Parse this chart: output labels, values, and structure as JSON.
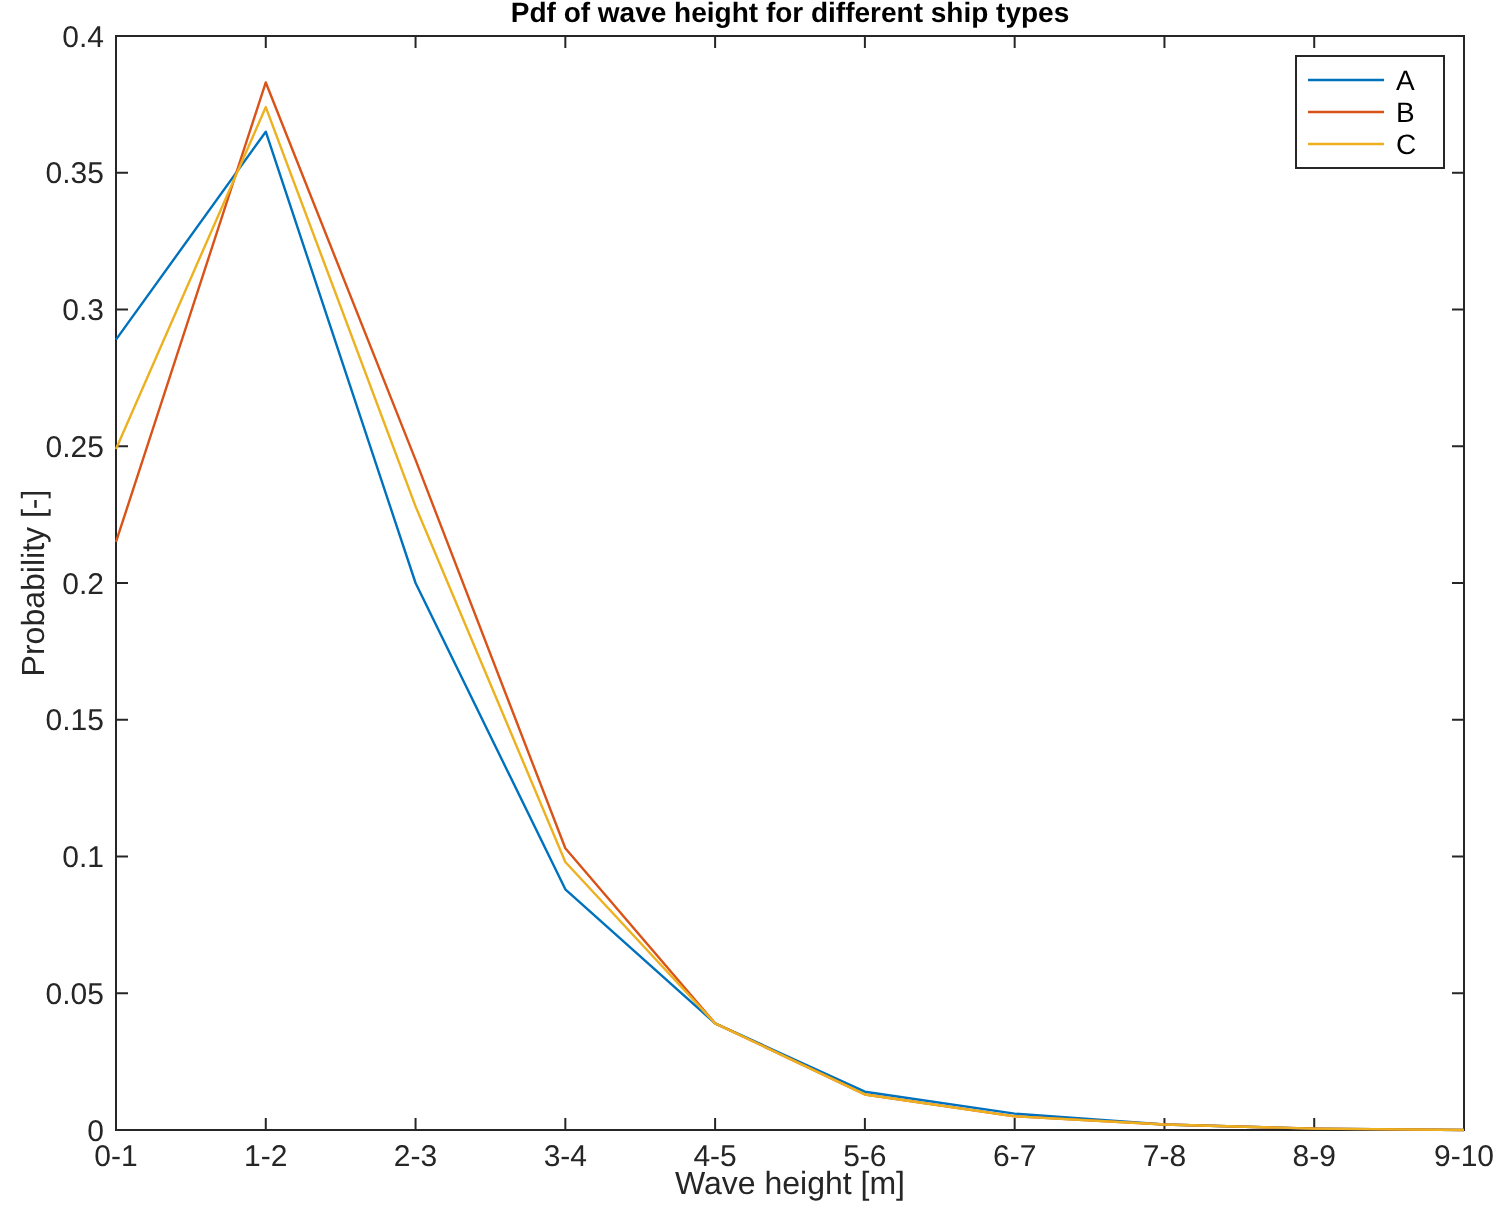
{
  "chart_data": {
    "type": "line",
    "title": "Pdf of wave height for different ship types",
    "xlabel": "Wave height [m]",
    "ylabel": "Probability [-]",
    "categories": [
      "0-1",
      "1-2",
      "2-3",
      "3-4",
      "4-5",
      "5-6",
      "6-7",
      "7-8",
      "8-9",
      "9-10"
    ],
    "series": [
      {
        "name": "A",
        "color": "#0072bd",
        "values": [
          0.289,
          0.365,
          0.2,
          0.088,
          0.039,
          0.014,
          0.006,
          0.002,
          0.0005,
          0
        ]
      },
      {
        "name": "B",
        "color": "#d95319",
        "values": [
          0.215,
          0.383,
          0.245,
          0.103,
          0.039,
          0.013,
          0.005,
          0.002,
          0.0005,
          0
        ]
      },
      {
        "name": "C",
        "color": "#edb120",
        "values": [
          0.249,
          0.374,
          0.228,
          0.098,
          0.039,
          0.013,
          0.005,
          0.002,
          0.0005,
          0
        ]
      }
    ],
    "ylim": [
      0,
      0.4
    ],
    "yticks": [
      0,
      0.05,
      0.1,
      0.15,
      0.2,
      0.25,
      0.3,
      0.35,
      0.4
    ],
    "legend": "top right",
    "grid": false
  }
}
